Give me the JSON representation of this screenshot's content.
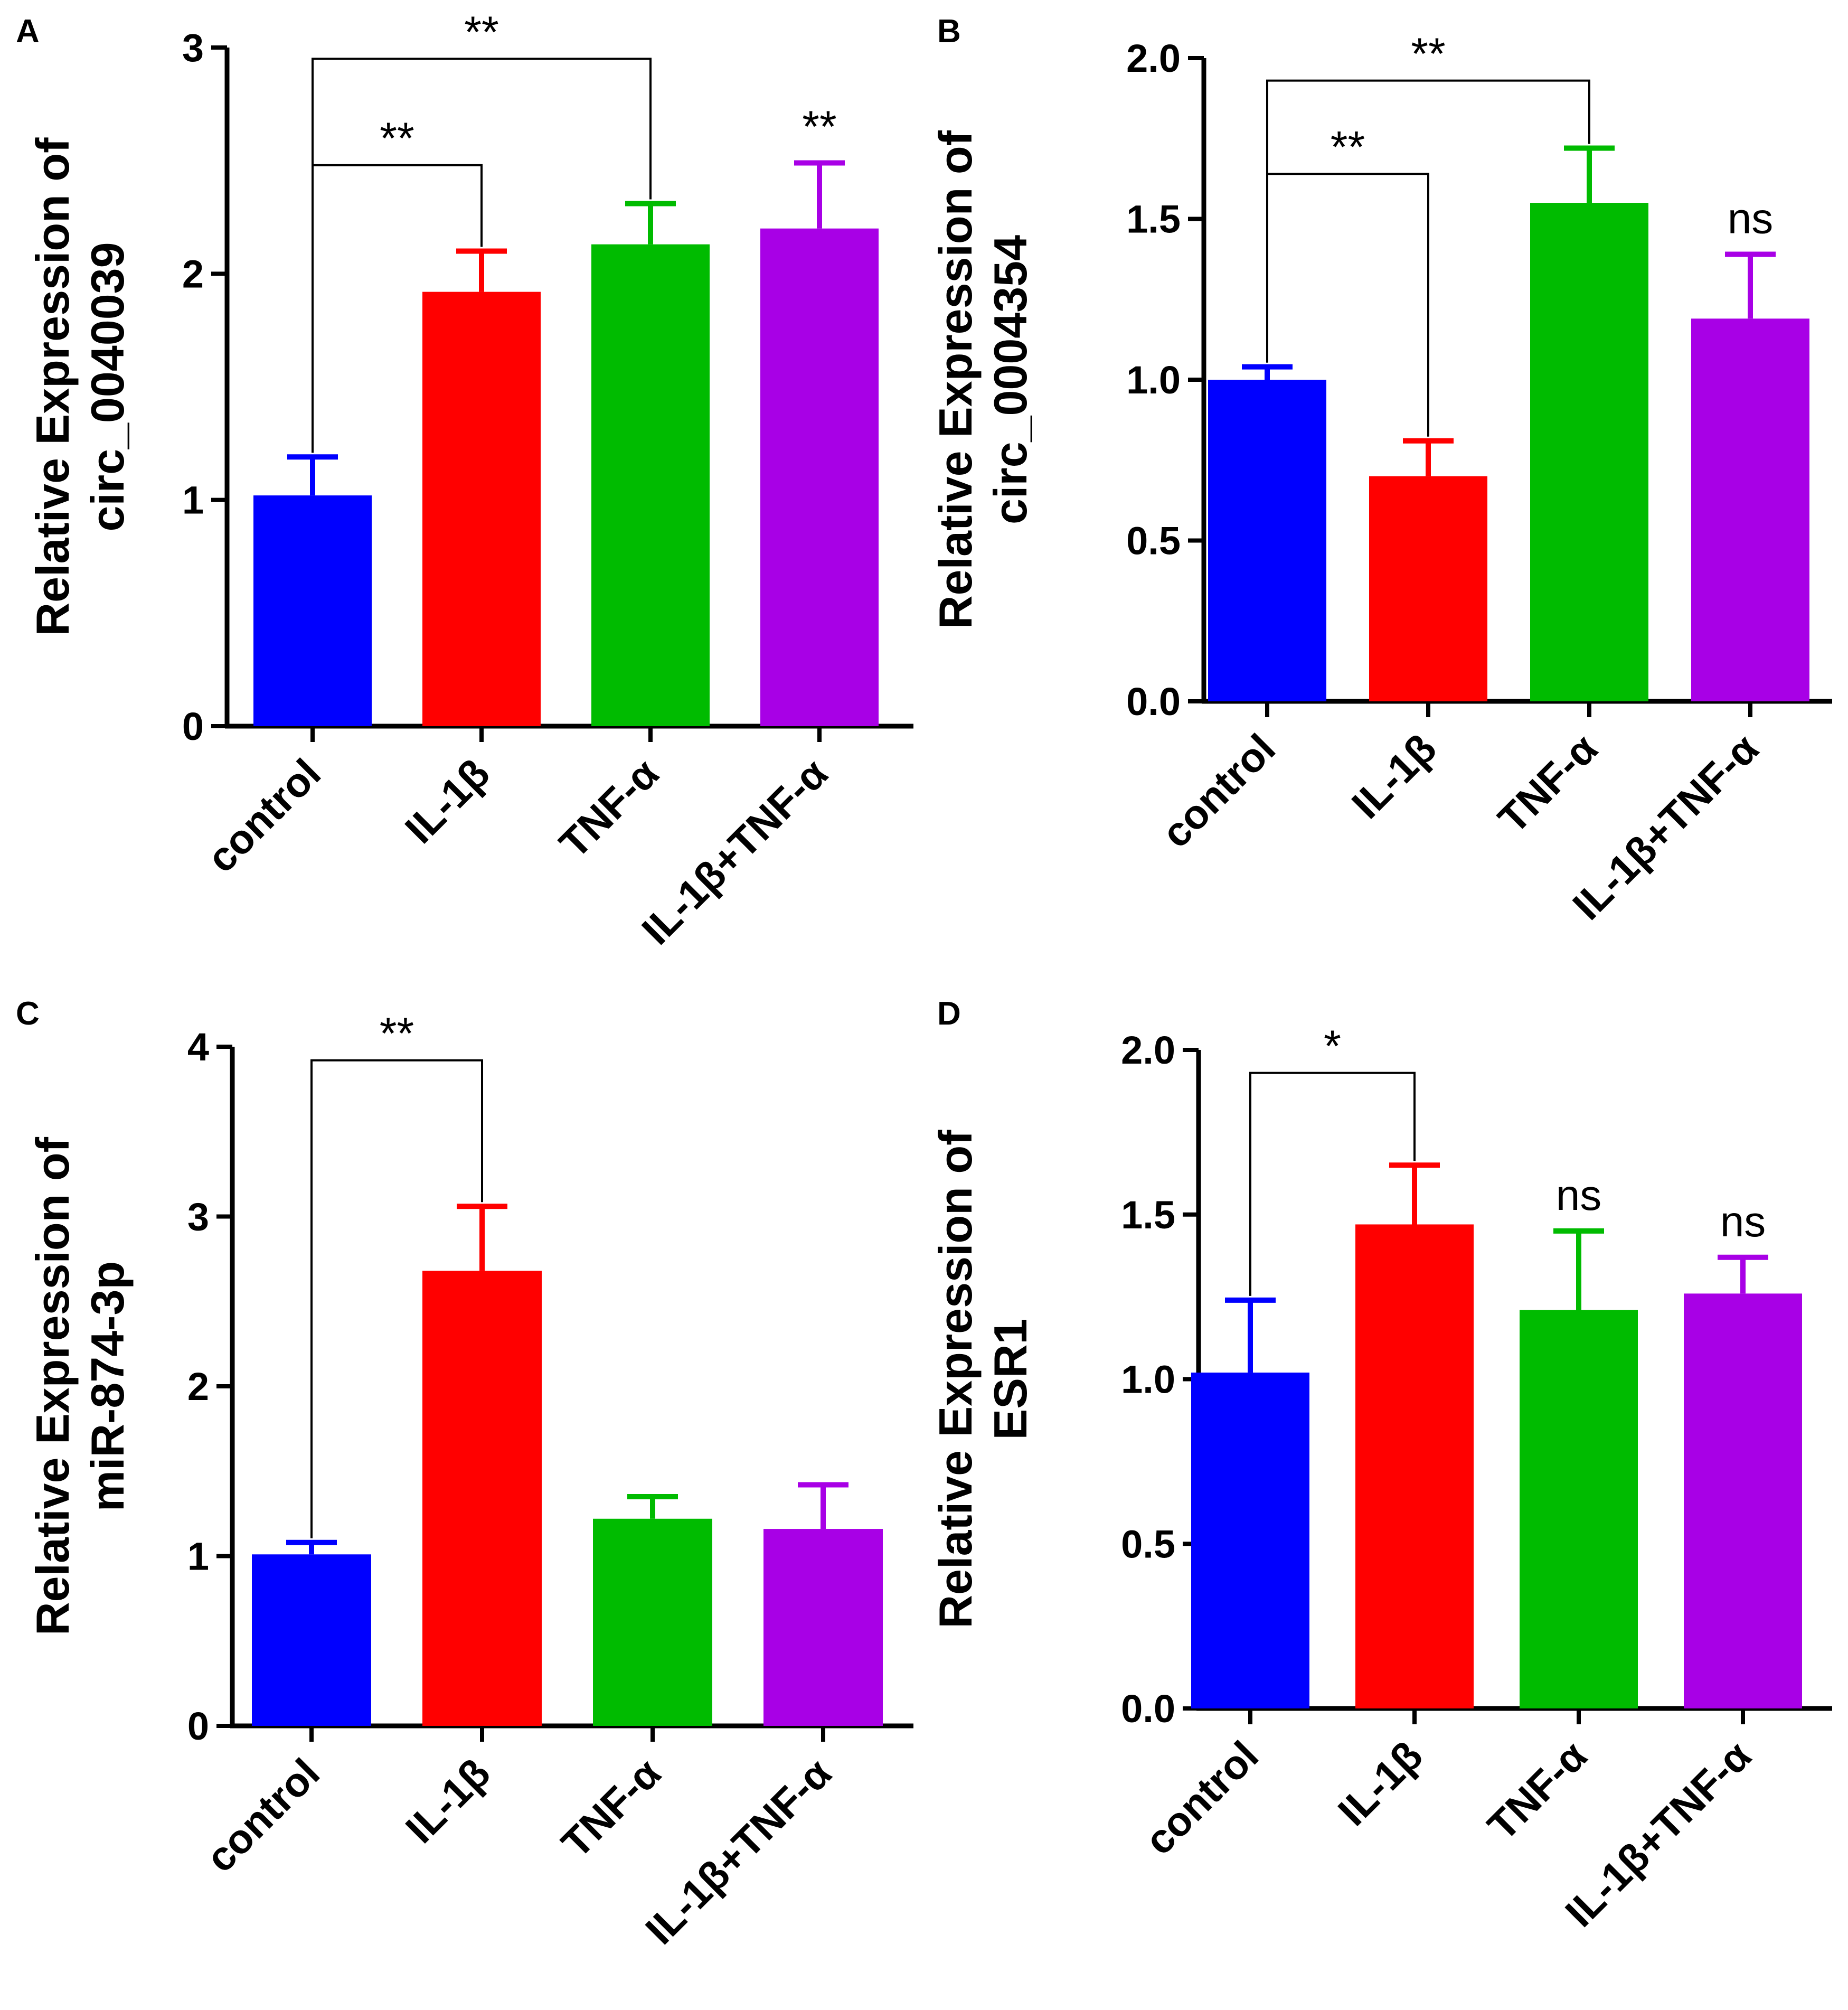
{
  "colors": {
    "control": "#0000ff",
    "IL-1β": "#ff0000",
    "TNF-α": "#00bb00",
    "IL-1β+TNF-α": "#a800e6",
    "axis": "#000000"
  },
  "chart_data": [
    {
      "panel": "A",
      "type": "bar",
      "ylabel_lines": [
        "Relative Expression of",
        "circ_0040039"
      ],
      "categories": [
        "control",
        "IL-1β",
        "TNF-α",
        "IL-1β+TNF-α"
      ],
      "values": [
        1.02,
        1.92,
        2.13,
        2.2
      ],
      "errors": [
        0.17,
        0.18,
        0.18,
        0.29
      ],
      "ylim": [
        0,
        3
      ],
      "yticks": [
        "0",
        "1",
        "2",
        "3"
      ],
      "brackets": [
        {
          "from": 0,
          "to": 1,
          "level": 2.48,
          "label": "**"
        },
        {
          "from": 0,
          "to": 2,
          "level": 2.95,
          "label": "**"
        }
      ],
      "markers": [
        {
          "bar": 3,
          "label": "**"
        }
      ]
    },
    {
      "panel": "B",
      "type": "bar",
      "ylabel_lines": [
        "Relative Expression of",
        "circ_0004354"
      ],
      "categories": [
        "control",
        "IL-1β",
        "TNF-α",
        "IL-1β+TNF-α"
      ],
      "values": [
        1.0,
        0.7,
        1.55,
        1.19
      ],
      "errors": [
        0.04,
        0.11,
        0.17,
        0.2
      ],
      "ylim": [
        0,
        2
      ],
      "yticks": [
        "0.0",
        "0.5",
        "1.0",
        "1.5",
        "2.0"
      ],
      "brackets": [
        {
          "from": 0,
          "to": 1,
          "level": 1.64,
          "label": "**"
        },
        {
          "from": 0,
          "to": 2,
          "level": 1.93,
          "label": "**"
        }
      ],
      "markers": [
        {
          "bar": 3,
          "label": "ns"
        }
      ]
    },
    {
      "panel": "C",
      "type": "bar",
      "ylabel_lines": [
        "Relative Expression of",
        "miR-874-3p"
      ],
      "categories": [
        "control",
        "IL-1β",
        "TNF-α",
        "IL-1β+TNF-α"
      ],
      "values": [
        1.01,
        2.68,
        1.22,
        1.16
      ],
      "errors": [
        0.07,
        0.38,
        0.13,
        0.26
      ],
      "ylim": [
        0,
        4
      ],
      "yticks": [
        "0",
        "1",
        "2",
        "3",
        "4"
      ],
      "brackets": [
        {
          "from": 0,
          "to": 1,
          "level": 3.92,
          "label": "**"
        }
      ],
      "markers": []
    },
    {
      "panel": "D",
      "type": "bar",
      "ylabel_lines": [
        "Relative Expression of",
        "ESR1"
      ],
      "categories": [
        "control",
        "IL-1β",
        "TNF-α",
        "IL-1β+TNF-α"
      ],
      "values": [
        1.02,
        1.47,
        1.21,
        1.26
      ],
      "errors": [
        0.22,
        0.18,
        0.24,
        0.11
      ],
      "ylim": [
        0,
        2
      ],
      "yticks": [
        "0.0",
        "0.5",
        "1.0",
        "1.5",
        "2.0"
      ],
      "brackets": [
        {
          "from": 0,
          "to": 1,
          "level": 1.93,
          "label": "*"
        }
      ],
      "markers": [
        {
          "bar": 2,
          "label": "ns"
        },
        {
          "bar": 3,
          "label": "ns"
        }
      ]
    }
  ]
}
